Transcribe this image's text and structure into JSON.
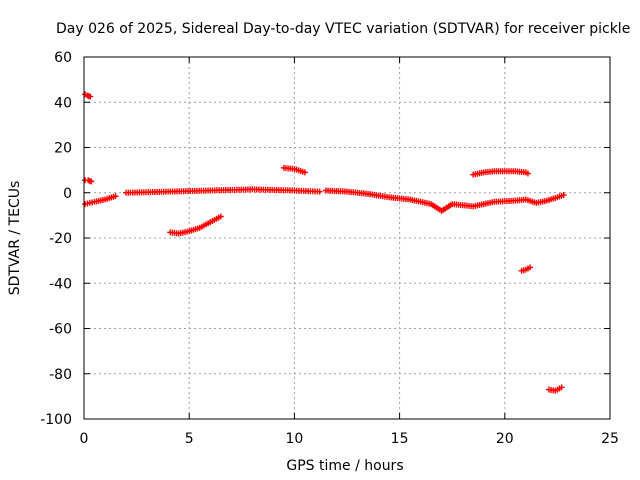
{
  "chart_data": {
    "type": "scatter",
    "title": "Day 026 of 2025, Sidereal Day-to-day VTEC variation (SDTVAR) for receiver pickle",
    "xlabel": "GPS time / hours",
    "ylabel": "SDTVAR / TECUs",
    "xlim": [
      0,
      25
    ],
    "ylim": [
      -100,
      60
    ],
    "xticks": [
      0,
      5,
      10,
      15,
      20,
      25
    ],
    "yticks": [
      -100,
      -80,
      -60,
      -40,
      -20,
      0,
      20,
      40,
      60
    ],
    "grid": true,
    "series": [
      {
        "name": "SDTVAR",
        "color": "#ff0000",
        "marker": "plus",
        "segments": [
          {
            "x": [
              0.05,
              0.15,
              0.3
            ],
            "y": [
              43.5,
              43,
              42.5
            ]
          },
          {
            "x": [
              0.05,
              0.2,
              0.35
            ],
            "y": [
              5.5,
              5.5,
              5
            ]
          },
          {
            "x": [
              0.05,
              0.5,
              1.0,
              1.5
            ],
            "y": [
              -5,
              -4,
              -3,
              -1.5
            ]
          },
          {
            "x": [
              2.0,
              4.0,
              6.0,
              8.0,
              10.0,
              11.2
            ],
            "y": [
              0,
              0.5,
              1,
              1.5,
              1,
              0.5
            ]
          },
          {
            "x": [
              4.1,
              4.5,
              5.0,
              5.5,
              6.0,
              6.5
            ],
            "y": [
              -17.5,
              -18,
              -17,
              -15.5,
              -13,
              -10.5
            ]
          },
          {
            "x": [
              9.5,
              10.0,
              10.5
            ],
            "y": [
              11,
              10.5,
              9
            ]
          },
          {
            "x": [
              11.5,
              12.5,
              13.5,
              14.5,
              15.5,
              16.5,
              17.0,
              17.5,
              18.5,
              19.5,
              20.5,
              21.0,
              21.5,
              22.0,
              22.5,
              22.8
            ],
            "y": [
              1,
              0.5,
              -0.5,
              -2,
              -3,
              -5,
              -8,
              -5,
              -6,
              -4,
              -3.5,
              -3,
              -4.5,
              -3.5,
              -2,
              -1
            ]
          },
          {
            "x": [
              18.5,
              19.0,
              19.5,
              20.0,
              20.5,
              21.0,
              21.1
            ],
            "y": [
              8,
              9,
              9.5,
              9.5,
              9.5,
              9,
              8.5
            ]
          },
          {
            "x": [
              20.8,
              21.0,
              21.2
            ],
            "y": [
              -34.5,
              -34,
              -33
            ]
          },
          {
            "x": [
              22.1,
              22.4,
              22.7
            ],
            "y": [
              -87,
              -87.5,
              -86
            ]
          }
        ]
      }
    ]
  }
}
